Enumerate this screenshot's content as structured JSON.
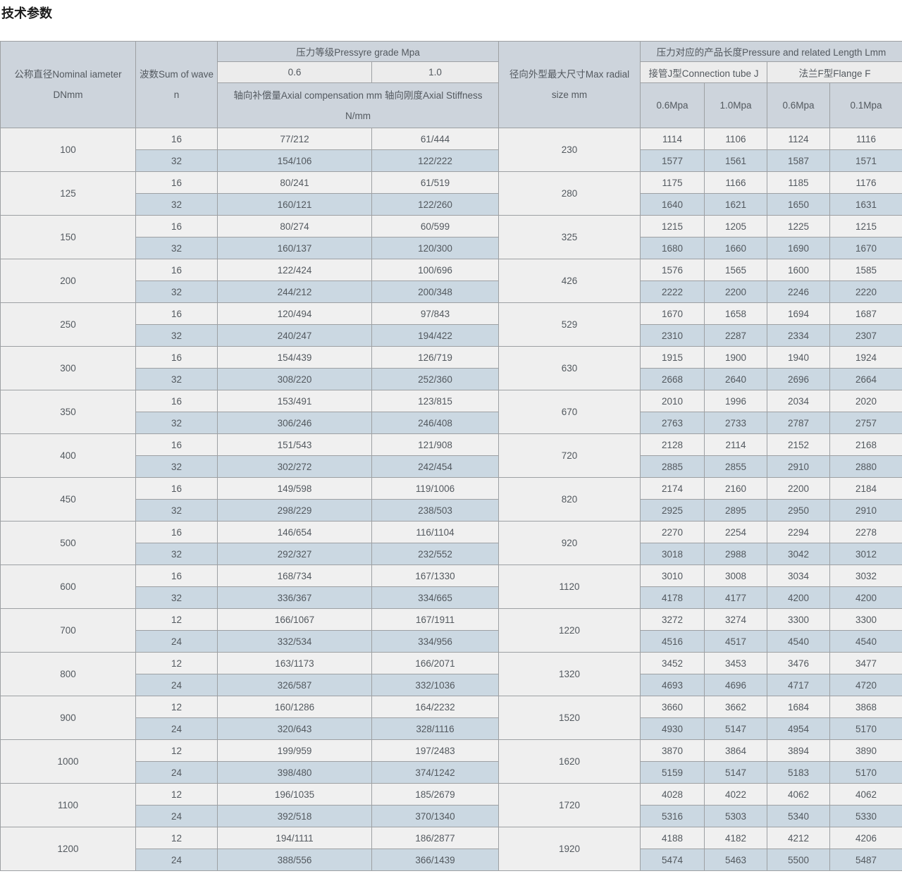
{
  "page": {
    "title": "技术参数"
  },
  "colors": {
    "header_bg": "#cdd4dc",
    "subheader_bg": "#ececec",
    "row_light_bg": "#f0f0f0",
    "row_blue_bg": "#cbd8e2",
    "rowspan_cell_bg": "#efefef",
    "border": "#9da0a3",
    "text": "#53595f",
    "title_text": "#1b1b1b"
  },
  "table": {
    "header": {
      "nominal_diameter": {
        "line1": "公称直径Nominal iameter",
        "line2": "DNmm"
      },
      "wave_count": {
        "line1": "波数Sum of wave",
        "line2": "n"
      },
      "pressure_group": "压力等级Pressyre grade Mpa",
      "pressure_cols": {
        "p06": "0.6",
        "p10": "1.0"
      },
      "axial_note": {
        "line1": "轴向补偿量Axial compensation mm 轴向刚度Axial Stiffness",
        "line2": "N/mm"
      },
      "radial": {
        "line1": "径向外型最大尺寸Max radial",
        "line2": "size mm"
      },
      "length_group": "压力对应的产品长度Pressure and related Length Lmm",
      "tube_j": "接管J型Connection tube J",
      "flange_f": "法兰F型Flange F",
      "sub_mpa": {
        "j06": "0.6Mpa",
        "j10": "1.0Mpa",
        "f06": "0.6Mpa",
        "f01": "0.1Mpa"
      }
    },
    "rows": [
      {
        "dn": "100",
        "radial": "230",
        "sub": [
          [
            "16",
            "77/212",
            "61/444",
            "1114",
            "1106",
            "1124",
            "1116"
          ],
          [
            "32",
            "154/106",
            "122/222",
            "1577",
            "1561",
            "1587",
            "1571"
          ]
        ]
      },
      {
        "dn": "125",
        "radial": "280",
        "sub": [
          [
            "16",
            "80/241",
            "61/519",
            "1175",
            "1166",
            "1185",
            "1176"
          ],
          [
            "32",
            "160/121",
            "122/260",
            "1640",
            "1621",
            "1650",
            "1631"
          ]
        ]
      },
      {
        "dn": "150",
        "radial": "325",
        "sub": [
          [
            "16",
            "80/274",
            "60/599",
            "1215",
            "1205",
            "1225",
            "1215"
          ],
          [
            "32",
            "160/137",
            "120/300",
            "1680",
            "1660",
            "1690",
            "1670"
          ]
        ]
      },
      {
        "dn": "200",
        "radial": "426",
        "sub": [
          [
            "16",
            "122/424",
            "100/696",
            "1576",
            "1565",
            "1600",
            "1585"
          ],
          [
            "32",
            "244/212",
            "200/348",
            "2222",
            "2200",
            "2246",
            "2220"
          ]
        ]
      },
      {
        "dn": "250",
        "radial": "529",
        "sub": [
          [
            "16",
            "120/494",
            "97/843",
            "1670",
            "1658",
            "1694",
            "1687"
          ],
          [
            "32",
            "240/247",
            "194/422",
            "2310",
            "2287",
            "2334",
            "2307"
          ]
        ]
      },
      {
        "dn": "300",
        "radial": "630",
        "sub": [
          [
            "16",
            "154/439",
            "126/719",
            "1915",
            "1900",
            "1940",
            "1924"
          ],
          [
            "32",
            "308/220",
            "252/360",
            "2668",
            "2640",
            "2696",
            "2664"
          ]
        ]
      },
      {
        "dn": "350",
        "radial": "670",
        "sub": [
          [
            "16",
            "153/491",
            "123/815",
            "2010",
            "1996",
            "2034",
            "2020"
          ],
          [
            "32",
            "306/246",
            "246/408",
            "2763",
            "2733",
            "2787",
            "2757"
          ]
        ]
      },
      {
        "dn": "400",
        "radial": "720",
        "sub": [
          [
            "16",
            "151/543",
            "121/908",
            "2128",
            "2114",
            "2152",
            "2168"
          ],
          [
            "32",
            "302/272",
            "242/454",
            "2885",
            "2855",
            "2910",
            "2880"
          ]
        ]
      },
      {
        "dn": "450",
        "radial": "820",
        "sub": [
          [
            "16",
            "149/598",
            "119/1006",
            "2174",
            "2160",
            "2200",
            "2184"
          ],
          [
            "32",
            "298/229",
            "238/503",
            "2925",
            "2895",
            "2950",
            "2910"
          ]
        ]
      },
      {
        "dn": "500",
        "radial": "920",
        "sub": [
          [
            "16",
            "146/654",
            "116/1104",
            "2270",
            "2254",
            "2294",
            "2278"
          ],
          [
            "32",
            "292/327",
            "232/552",
            "3018",
            "2988",
            "3042",
            "3012"
          ]
        ]
      },
      {
        "dn": "600",
        "radial": "1120",
        "sub": [
          [
            "16",
            "168/734",
            "167/1330",
            "3010",
            "3008",
            "3034",
            "3032"
          ],
          [
            "32",
            "336/367",
            "334/665",
            "4178",
            "4177",
            "4200",
            "4200"
          ]
        ]
      },
      {
        "dn": "700",
        "radial": "1220",
        "sub": [
          [
            "12",
            "166/1067",
            "167/1911",
            "3272",
            "3274",
            "3300",
            "3300"
          ],
          [
            "24",
            "332/534",
            "334/956",
            "4516",
            "4517",
            "4540",
            "4540"
          ]
        ]
      },
      {
        "dn": "800",
        "radial": "1320",
        "sub": [
          [
            "12",
            "163/1173",
            "166/2071",
            "3452",
            "3453",
            "3476",
            "3477"
          ],
          [
            "24",
            "326/587",
            "332/1036",
            "4693",
            "4696",
            "4717",
            "4720"
          ]
        ]
      },
      {
        "dn": "900",
        "radial": "1520",
        "sub": [
          [
            "12",
            "160/1286",
            "164/2232",
            "3660",
            "3662",
            "1684",
            "3868"
          ],
          [
            "24",
            "320/643",
            "328/1116",
            "4930",
            "5147",
            "4954",
            "5170"
          ]
        ]
      },
      {
        "dn": "1000",
        "radial": "1620",
        "sub": [
          [
            "12",
            "199/959",
            "197/2483",
            "3870",
            "3864",
            "3894",
            "3890"
          ],
          [
            "24",
            "398/480",
            "374/1242",
            "5159",
            "5147",
            "5183",
            "5170"
          ]
        ]
      },
      {
        "dn": "1100",
        "radial": "1720",
        "sub": [
          [
            "12",
            "196/1035",
            "185/2679",
            "4028",
            "4022",
            "4062",
            "4062"
          ],
          [
            "24",
            "392/518",
            "370/1340",
            "5316",
            "5303",
            "5340",
            "5330"
          ]
        ]
      },
      {
        "dn": "1200",
        "radial": "1920",
        "sub": [
          [
            "12",
            "194/1111",
            "186/2877",
            "4188",
            "4182",
            "4212",
            "4206"
          ],
          [
            "24",
            "388/556",
            "366/1439",
            "5474",
            "5463",
            "5500",
            "5487"
          ]
        ]
      }
    ]
  }
}
